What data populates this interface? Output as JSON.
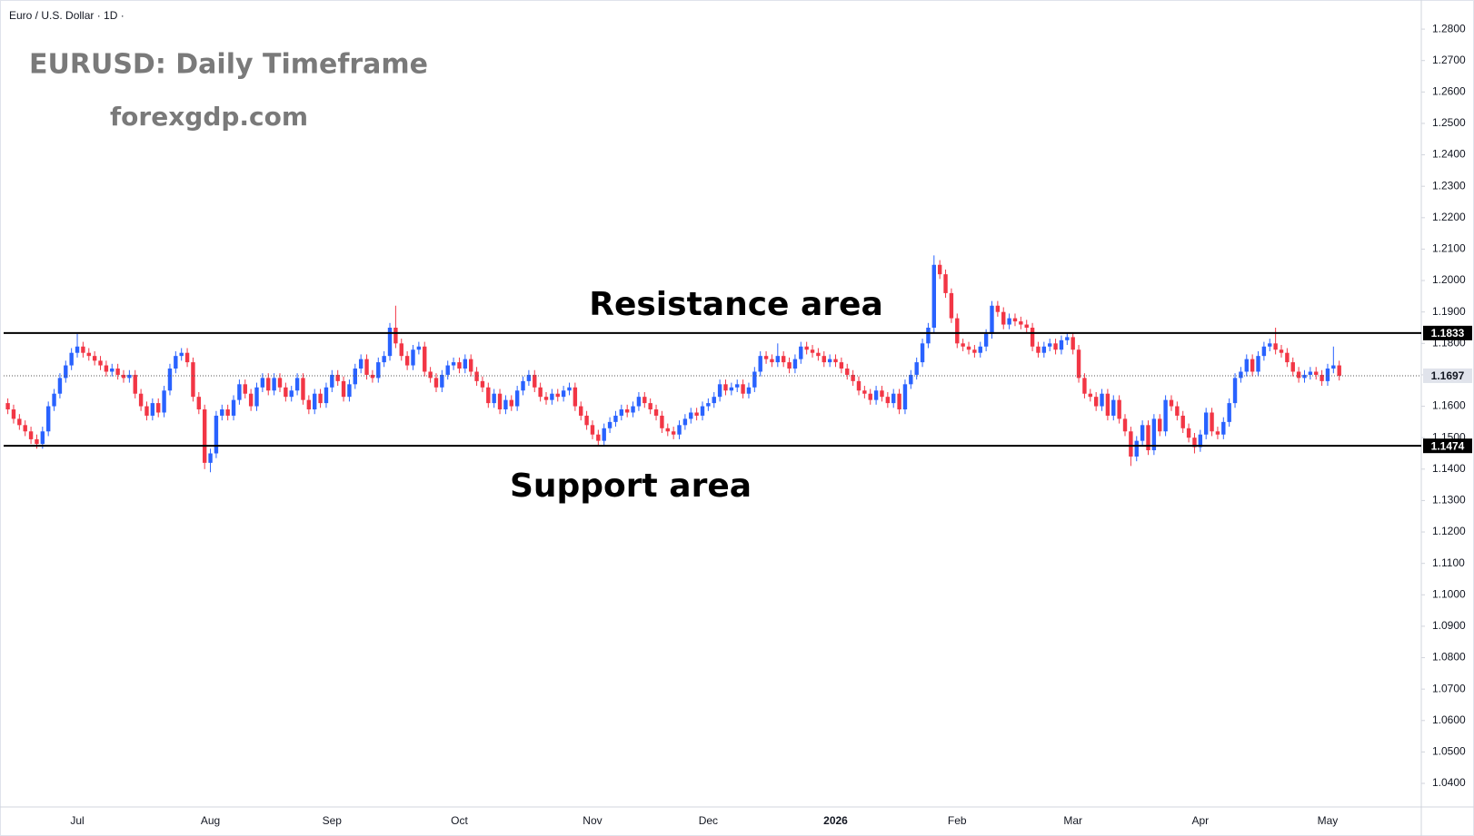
{
  "chart_data": {
    "type": "candlestick",
    "header": "Euro / U.S. Dollar · 1D ·",
    "title": "EURUSD: Daily Timeframe",
    "subtitle": "forexgdp.com",
    "annotations": [
      "Resistance area",
      "Support area"
    ],
    "up_color": "#2962ff",
    "down_color": "#f23645",
    "grid": false,
    "ylim": [
      1.0325,
      1.2884
    ],
    "yticks": [
      {
        "value": 1.04,
        "label": "1.0400"
      },
      {
        "value": 1.05,
        "label": "1.0500"
      },
      {
        "value": 1.06,
        "label": "1.0600"
      },
      {
        "value": 1.07,
        "label": "1.0700"
      },
      {
        "value": 1.08,
        "label": "1.0800"
      },
      {
        "value": 1.09,
        "label": "1.0900"
      },
      {
        "value": 1.1,
        "label": "1.1000"
      },
      {
        "value": 1.11,
        "label": "1.1100"
      },
      {
        "value": 1.12,
        "label": "1.1200"
      },
      {
        "value": 1.13,
        "label": "1.1300"
      },
      {
        "value": 1.14,
        "label": "1.1400"
      },
      {
        "value": 1.15,
        "label": "1.1500"
      },
      {
        "value": 1.16,
        "label": "1.1600"
      },
      {
        "value": 1.17,
        "label": "1.1700"
      },
      {
        "value": 1.18,
        "label": "1.1800"
      },
      {
        "value": 1.19,
        "label": "1.1900"
      },
      {
        "value": 1.2,
        "label": "1.2000"
      },
      {
        "value": 1.21,
        "label": "1.2100"
      },
      {
        "value": 1.22,
        "label": "1.2200"
      },
      {
        "value": 1.23,
        "label": "1.2300"
      },
      {
        "value": 1.24,
        "label": "1.2400"
      },
      {
        "value": 1.25,
        "label": "1.2500"
      },
      {
        "value": 1.26,
        "label": "1.2600"
      },
      {
        "value": 1.27,
        "label": "1.2700"
      },
      {
        "value": 1.28,
        "label": "1.2800"
      }
    ],
    "hlines": [
      1.1833,
      1.1474
    ],
    "last_price": 1.1697,
    "categories": [
      null,
      null,
      null,
      null,
      null,
      null,
      null,
      null,
      null,
      null,
      null,
      null,
      "Jul",
      null,
      null,
      null,
      null,
      null,
      null,
      null,
      null,
      null,
      null,
      null,
      null,
      null,
      null,
      null,
      null,
      null,
      null,
      null,
      null,
      null,
      null,
      "Aug",
      null,
      null,
      null,
      null,
      null,
      null,
      null,
      null,
      null,
      null,
      null,
      null,
      null,
      null,
      null,
      null,
      null,
      null,
      null,
      null,
      "Sep",
      null,
      null,
      null,
      null,
      null,
      null,
      null,
      null,
      null,
      null,
      null,
      null,
      null,
      null,
      null,
      null,
      null,
      null,
      null,
      null,
      null,
      "Oct",
      null,
      null,
      null,
      null,
      null,
      null,
      null,
      null,
      null,
      null,
      null,
      null,
      null,
      null,
      null,
      null,
      null,
      null,
      null,
      null,
      null,
      null,
      "Nov",
      null,
      null,
      null,
      null,
      null,
      null,
      null,
      null,
      null,
      null,
      null,
      null,
      null,
      null,
      null,
      null,
      null,
      null,
      null,
      "Dec",
      null,
      null,
      null,
      null,
      null,
      null,
      null,
      null,
      null,
      null,
      null,
      null,
      null,
      null,
      null,
      null,
      null,
      null,
      null,
      null,
      null,
      "2026",
      null,
      null,
      null,
      null,
      null,
      null,
      null,
      null,
      null,
      null,
      null,
      null,
      null,
      null,
      null,
      null,
      null,
      null,
      null,
      null,
      "Feb",
      null,
      null,
      null,
      null,
      null,
      null,
      null,
      null,
      null,
      null,
      null,
      null,
      null,
      null,
      null,
      null,
      null,
      null,
      null,
      "Mar",
      null,
      null,
      null,
      null,
      null,
      null,
      null,
      null,
      null,
      null,
      null,
      null,
      null,
      null,
      null,
      null,
      null,
      null,
      null,
      null,
      null,
      "Apr",
      null,
      null,
      null,
      null,
      null,
      null,
      null,
      null,
      null,
      null,
      null,
      null,
      null,
      null,
      null,
      null,
      null,
      null,
      null,
      null,
      null,
      "May",
      null,
      null
    ],
    "open": [
      1.161,
      1.159,
      1.156,
      1.154,
      1.152,
      1.1495,
      1.148,
      1.152,
      1.16,
      1.164,
      1.169,
      1.173,
      1.177,
      1.179,
      1.177,
      1.176,
      1.1745,
      1.173,
      1.171,
      1.172,
      1.17,
      1.169,
      1.17,
      1.164,
      1.16,
      1.157,
      1.161,
      1.158,
      1.165,
      1.172,
      1.176,
      1.177,
      1.174,
      1.163,
      1.159,
      1.142,
      1.145,
      1.157,
      1.159,
      1.157,
      1.162,
      1.167,
      1.164,
      1.16,
      1.166,
      1.169,
      1.165,
      1.169,
      1.166,
      1.163,
      1.165,
      1.169,
      1.162,
      1.159,
      1.164,
      1.161,
      1.166,
      1.17,
      1.168,
      1.163,
      1.167,
      1.172,
      1.175,
      1.17,
      1.169,
      1.174,
      1.176,
      1.185,
      1.18,
      1.176,
      1.173,
      1.178,
      1.179,
      1.171,
      1.169,
      1.166,
      1.17,
      1.173,
      1.174,
      1.172,
      1.175,
      1.171,
      1.168,
      1.166,
      1.161,
      1.164,
      1.159,
      1.162,
      1.16,
      1.165,
      1.168,
      1.17,
      1.166,
      1.163,
      1.162,
      1.164,
      1.163,
      1.165,
      1.166,
      1.16,
      1.157,
      1.154,
      1.151,
      1.149,
      1.153,
      1.155,
      1.157,
      1.159,
      1.158,
      1.16,
      1.163,
      1.161,
      1.159,
      1.157,
      1.153,
      1.152,
      1.151,
      1.154,
      1.156,
      1.158,
      1.157,
      1.16,
      1.161,
      1.163,
      1.167,
      1.165,
      1.166,
      1.167,
      1.164,
      1.166,
      1.171,
      1.176,
      1.175,
      1.174,
      1.176,
      1.174,
      1.172,
      1.175,
      1.179,
      1.178,
      1.177,
      1.176,
      1.174,
      1.175,
      1.174,
      1.172,
      1.17,
      1.168,
      1.165,
      1.164,
      1.162,
      1.165,
      1.163,
      1.161,
      1.164,
      1.159,
      1.167,
      1.17,
      1.174,
      1.18,
      1.185,
      1.205,
      1.202,
      1.196,
      1.188,
      1.18,
      1.179,
      1.178,
      1.177,
      1.179,
      1.183,
      1.192,
      1.19,
      1.186,
      1.188,
      1.187,
      1.186,
      1.185,
      1.179,
      1.177,
      1.179,
      1.18,
      1.178,
      1.181,
      1.182,
      1.178,
      1.169,
      1.164,
      1.163,
      1.16,
      1.164,
      1.157,
      1.162,
      1.156,
      1.152,
      1.144,
      1.149,
      1.154,
      1.146,
      1.156,
      1.152,
      1.162,
      1.16,
      1.157,
      1.153,
      1.15,
      1.147,
      1.151,
      1.158,
      1.152,
      1.151,
      1.155,
      1.161,
      1.169,
      1.171,
      1.175,
      1.171,
      1.176,
      1.179,
      1.18,
      1.178,
      1.177,
      1.174,
      1.171,
      1.169,
      1.17,
      1.171,
      1.17,
      1.168,
      1.172,
      1.173
    ],
    "high": [
      1.1625,
      1.1605,
      1.1575,
      1.1555,
      1.1535,
      1.151,
      1.1535,
      1.1615,
      1.1655,
      1.1705,
      1.1745,
      1.1785,
      1.183,
      1.1805,
      1.1785,
      1.1775,
      1.176,
      1.1745,
      1.1735,
      1.1735,
      1.1715,
      1.1715,
      1.1715,
      1.1655,
      1.1615,
      1.1625,
      1.1625,
      1.1665,
      1.1735,
      1.1775,
      1.1785,
      1.1785,
      1.1755,
      1.1645,
      1.1605,
      1.1465,
      1.1585,
      1.1605,
      1.1605,
      1.1635,
      1.1685,
      1.1685,
      1.1655,
      1.1675,
      1.1705,
      1.1705,
      1.1705,
      1.1705,
      1.1675,
      1.1665,
      1.1705,
      1.1705,
      1.1635,
      1.1655,
      1.1655,
      1.1675,
      1.1715,
      1.1715,
      1.1695,
      1.1685,
      1.1735,
      1.1765,
      1.1765,
      1.1715,
      1.1755,
      1.1775,
      1.1865,
      1.192,
      1.1815,
      1.1775,
      1.1795,
      1.1805,
      1.1805,
      1.1725,
      1.1705,
      1.1715,
      1.1745,
      1.1755,
      1.1755,
      1.1765,
      1.1765,
      1.1725,
      1.1695,
      1.1675,
      1.1655,
      1.1655,
      1.1635,
      1.1635,
      1.1665,
      1.1695,
      1.1715,
      1.1715,
      1.1675,
      1.1645,
      1.1655,
      1.1655,
      1.1665,
      1.1675,
      1.1675,
      1.1615,
      1.1585,
      1.1555,
      1.1525,
      1.1545,
      1.1565,
      1.1585,
      1.1605,
      1.1605,
      1.1615,
      1.1645,
      1.1645,
      1.1625,
      1.1605,
      1.1585,
      1.1545,
      1.1535,
      1.1555,
      1.1575,
      1.1595,
      1.1595,
      1.1615,
      1.1625,
      1.1645,
      1.1685,
      1.1685,
      1.1675,
      1.1685,
      1.1685,
      1.1675,
      1.1725,
      1.1775,
      1.1775,
      1.1765,
      1.18,
      1.1775,
      1.1755,
      1.1765,
      1.1805,
      1.1805,
      1.1795,
      1.1785,
      1.1775,
      1.1765,
      1.1765,
      1.1755,
      1.1735,
      1.1715,
      1.1695,
      1.1665,
      1.1655,
      1.1665,
      1.1665,
      1.1645,
      1.1655,
      1.1655,
      1.1685,
      1.1715,
      1.1755,
      1.1815,
      1.1865,
      1.208,
      1.2065,
      1.2035,
      1.1975,
      1.1895,
      1.1815,
      1.1805,
      1.1795,
      1.1805,
      1.1845,
      1.1935,
      1.1935,
      1.1915,
      1.1895,
      1.1895,
      1.1885,
      1.1875,
      1.1865,
      1.1805,
      1.1805,
      1.1815,
      1.1815,
      1.1825,
      1.1835,
      1.1835,
      1.1795,
      1.1705,
      1.1655,
      1.1645,
      1.1655,
      1.1655,
      1.1635,
      1.1635,
      1.1575,
      1.1535,
      1.1505,
      1.1555,
      1.1555,
      1.1575,
      1.1575,
      1.1635,
      1.1635,
      1.1615,
      1.1585,
      1.1545,
      1.1515,
      1.1525,
      1.1595,
      1.1595,
      1.1535,
      1.1565,
      1.1625,
      1.1705,
      1.1725,
      1.1765,
      1.1765,
      1.1775,
      1.1805,
      1.1815,
      1.185,
      1.1795,
      1.1785,
      1.1755,
      1.1725,
      1.1715,
      1.1725,
      1.1725,
      1.1715,
      1.1735,
      1.179,
      1.1745
    ],
    "low": [
      1.1575,
      1.1545,
      1.1525,
      1.1505,
      1.148,
      1.1465,
      1.1465,
      1.1505,
      1.1585,
      1.1625,
      1.1675,
      1.1715,
      1.1755,
      1.1755,
      1.1745,
      1.173,
      1.1715,
      1.1695,
      1.1695,
      1.1685,
      1.1675,
      1.1675,
      1.1625,
      1.1585,
      1.1555,
      1.1555,
      1.1565,
      1.1565,
      1.1635,
      1.1705,
      1.1745,
      1.1725,
      1.1615,
      1.1575,
      1.14,
      1.139,
      1.1435,
      1.1555,
      1.1555,
      1.1555,
      1.1605,
      1.1625,
      1.1585,
      1.1585,
      1.1645,
      1.1635,
      1.1635,
      1.1645,
      1.1615,
      1.1615,
      1.1635,
      1.1605,
      1.1575,
      1.1575,
      1.1595,
      1.1595,
      1.1645,
      1.1665,
      1.1615,
      1.1615,
      1.1655,
      1.1705,
      1.1685,
      1.1675,
      1.1675,
      1.1725,
      1.1745,
      1.1785,
      1.1745,
      1.1715,
      1.1715,
      1.1765,
      1.1695,
      1.1675,
      1.1645,
      1.1645,
      1.1685,
      1.1715,
      1.1705,
      1.1705,
      1.1695,
      1.1665,
      1.1645,
      1.1595,
      1.1595,
      1.1575,
      1.1575,
      1.1585,
      1.1585,
      1.1635,
      1.1665,
      1.1645,
      1.1615,
      1.1605,
      1.1605,
      1.1615,
      1.1615,
      1.1635,
      1.1585,
      1.1555,
      1.1525,
      1.1495,
      1.1475,
      1.1475,
      1.1515,
      1.1535,
      1.1555,
      1.1565,
      1.1565,
      1.1585,
      1.1595,
      1.1575,
      1.1555,
      1.1515,
      1.1505,
      1.1495,
      1.1495,
      1.1525,
      1.1545,
      1.1555,
      1.1555,
      1.1585,
      1.1595,
      1.1615,
      1.1635,
      1.1635,
      1.1645,
      1.1625,
      1.1625,
      1.1645,
      1.1695,
      1.1735,
      1.1725,
      1.1725,
      1.1725,
      1.1705,
      1.1705,
      1.1735,
      1.1765,
      1.1755,
      1.1745,
      1.1725,
      1.1725,
      1.1725,
      1.1705,
      1.1685,
      1.1665,
      1.1635,
      1.1625,
      1.1605,
      1.1605,
      1.1615,
      1.1595,
      1.1595,
      1.1575,
      1.1575,
      1.1655,
      1.1685,
      1.1725,
      1.1785,
      1.1835,
      1.2005,
      1.1945,
      1.1865,
      1.1785,
      1.1775,
      1.1765,
      1.1755,
      1.1755,
      1.1775,
      1.1815,
      1.1885,
      1.1845,
      1.1845,
      1.1855,
      1.1845,
      1.1835,
      1.1775,
      1.1755,
      1.1755,
      1.1775,
      1.1765,
      1.1765,
      1.1795,
      1.1765,
      1.1675,
      1.1625,
      1.1615,
      1.1585,
      1.1585,
      1.1555,
      1.1555,
      1.1545,
      1.1505,
      1.141,
      1.1425,
      1.1475,
      1.1445,
      1.1445,
      1.1505,
      1.1505,
      1.1585,
      1.1555,
      1.1515,
      1.1485,
      1.145,
      1.1455,
      1.1495,
      1.1505,
      1.1495,
      1.1495,
      1.1535,
      1.1595,
      1.1675,
      1.1695,
      1.1695,
      1.1695,
      1.1745,
      1.1775,
      1.1765,
      1.1755,
      1.1725,
      1.1695,
      1.1675,
      1.1675,
      1.1685,
      1.1685,
      1.1665,
      1.1665,
      1.1705,
      1.1682
    ],
    "close": [
      1.159,
      1.156,
      1.154,
      1.152,
      1.1495,
      1.148,
      1.152,
      1.16,
      1.164,
      1.169,
      1.173,
      1.177,
      1.179,
      1.177,
      1.176,
      1.1745,
      1.173,
      1.171,
      1.172,
      1.17,
      1.169,
      1.17,
      1.164,
      1.16,
      1.157,
      1.161,
      1.158,
      1.165,
      1.172,
      1.176,
      1.177,
      1.174,
      1.163,
      1.159,
      1.142,
      1.145,
      1.157,
      1.159,
      1.157,
      1.162,
      1.167,
      1.164,
      1.16,
      1.166,
      1.169,
      1.165,
      1.169,
      1.166,
      1.163,
      1.165,
      1.169,
      1.162,
      1.159,
      1.164,
      1.161,
      1.166,
      1.17,
      1.168,
      1.163,
      1.167,
      1.172,
      1.175,
      1.17,
      1.169,
      1.174,
      1.176,
      1.185,
      1.18,
      1.176,
      1.173,
      1.178,
      1.179,
      1.171,
      1.169,
      1.166,
      1.17,
      1.173,
      1.174,
      1.172,
      1.175,
      1.171,
      1.168,
      1.166,
      1.161,
      1.164,
      1.159,
      1.162,
      1.16,
      1.165,
      1.168,
      1.17,
      1.166,
      1.163,
      1.162,
      1.164,
      1.163,
      1.165,
      1.166,
      1.16,
      1.157,
      1.154,
      1.151,
      1.149,
      1.153,
      1.155,
      1.157,
      1.159,
      1.158,
      1.16,
      1.163,
      1.161,
      1.159,
      1.157,
      1.153,
      1.152,
      1.151,
      1.154,
      1.156,
      1.158,
      1.157,
      1.16,
      1.161,
      1.163,
      1.167,
      1.165,
      1.166,
      1.167,
      1.164,
      1.166,
      1.171,
      1.176,
      1.175,
      1.174,
      1.176,
      1.174,
      1.172,
      1.175,
      1.179,
      1.178,
      1.177,
      1.176,
      1.174,
      1.175,
      1.174,
      1.172,
      1.17,
      1.168,
      1.165,
      1.164,
      1.162,
      1.165,
      1.163,
      1.161,
      1.164,
      1.159,
      1.167,
      1.17,
      1.174,
      1.18,
      1.185,
      1.205,
      1.202,
      1.196,
      1.188,
      1.18,
      1.179,
      1.178,
      1.177,
      1.179,
      1.183,
      1.192,
      1.19,
      1.186,
      1.188,
      1.187,
      1.186,
      1.185,
      1.179,
      1.177,
      1.179,
      1.18,
      1.178,
      1.181,
      1.182,
      1.178,
      1.169,
      1.164,
      1.163,
      1.16,
      1.164,
      1.157,
      1.162,
      1.156,
      1.152,
      1.144,
      1.149,
      1.154,
      1.146,
      1.156,
      1.152,
      1.162,
      1.16,
      1.157,
      1.153,
      1.15,
      1.147,
      1.151,
      1.158,
      1.152,
      1.151,
      1.155,
      1.161,
      1.169,
      1.171,
      1.175,
      1.171,
      1.176,
      1.179,
      1.18,
      1.178,
      1.177,
      1.174,
      1.171,
      1.169,
      1.17,
      1.171,
      1.17,
      1.168,
      1.172,
      1.173,
      1.1697
    ]
  }
}
